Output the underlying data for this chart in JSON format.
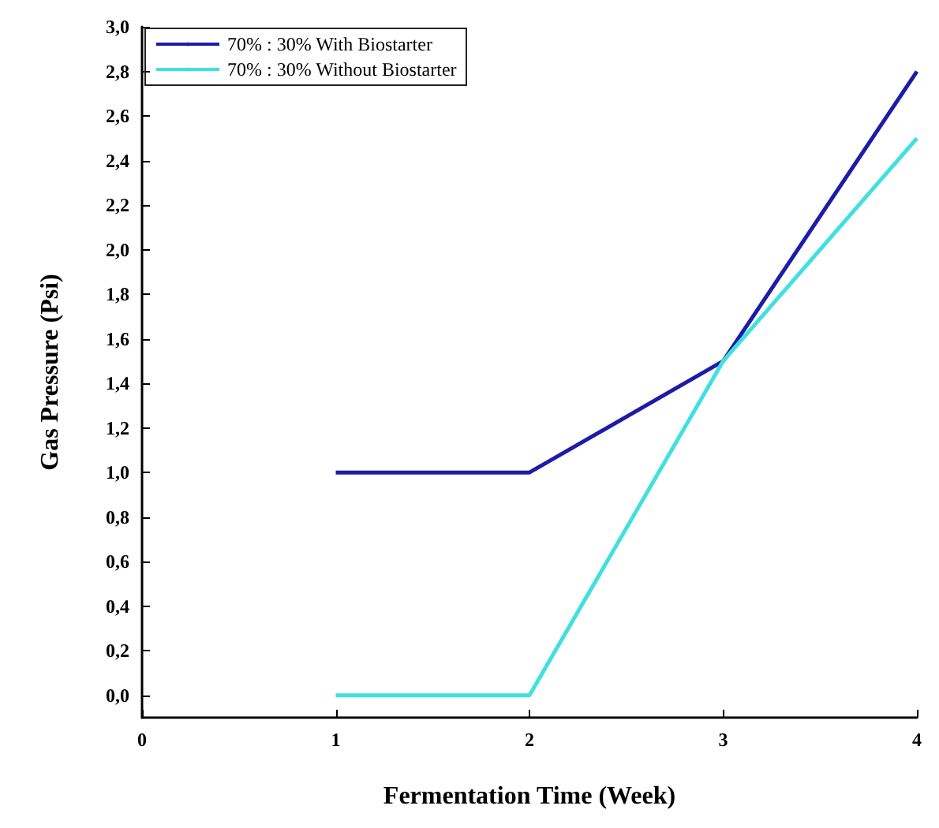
{
  "chart_data": {
    "type": "line",
    "xlabel": "Fermentation Time (Week)",
    "ylabel": "Gas Pressure (Psi)",
    "x": [
      1,
      2,
      3,
      4
    ],
    "series": [
      {
        "name": "70% : 30% With Biostarter",
        "color": "#1c1ca8",
        "values": [
          1.0,
          1.0,
          1.5,
          2.8
        ]
      },
      {
        "name": "70% : 30% Without Biostarter",
        "color": "#40e0e0",
        "values": [
          0.0,
          0.0,
          1.5,
          2.5
        ]
      }
    ],
    "xlim": [
      0,
      4
    ],
    "xticks": [
      0,
      1,
      2,
      3,
      4
    ],
    "ylim": [
      -0.1,
      3.0
    ],
    "yticks": [
      {
        "value": 0,
        "label": "0,0"
      },
      {
        "value": 0.2,
        "label": "0,2"
      },
      {
        "value": 0.4,
        "label": "0,4"
      },
      {
        "value": 0.6,
        "label": "0,6"
      },
      {
        "value": 0.8,
        "label": "0,8"
      },
      {
        "value": 1.0,
        "label": "1,0"
      },
      {
        "value": 1.2,
        "label": "1,2"
      },
      {
        "value": 1.4,
        "label": "1,4"
      },
      {
        "value": 1.6,
        "label": "1,6"
      },
      {
        "value": 1.8,
        "label": "1,8"
      },
      {
        "value": 2.0,
        "label": "2,0"
      },
      {
        "value": 2.2,
        "label": "2,2"
      },
      {
        "value": 2.4,
        "label": "2,4"
      },
      {
        "value": 2.6,
        "label": "2,6"
      },
      {
        "value": 2.8,
        "label": "2,8"
      },
      {
        "value": 3.0,
        "label": "3,0"
      }
    ],
    "legend": "top left",
    "marker": "none",
    "line_style": "solid"
  }
}
